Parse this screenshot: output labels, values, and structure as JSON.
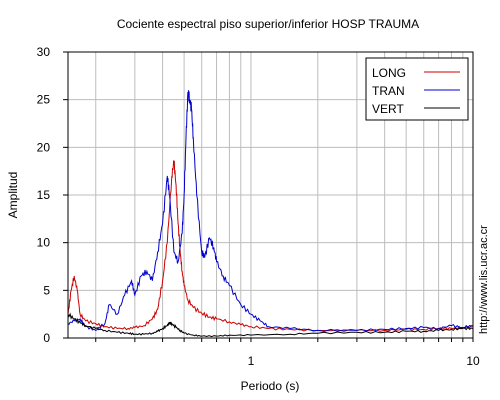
{
  "chart_data": {
    "type": "line",
    "title": "Cociente espectral piso superior/inferior  HOSP TRAUMA",
    "xlabel": "Periodo (s)",
    "ylabel": "Amplitud",
    "x_scale": "log",
    "xlim": [
      0.15,
      10
    ],
    "ylim": [
      0,
      30
    ],
    "y_ticks": [
      0,
      5,
      10,
      15,
      20,
      25,
      30
    ],
    "x_tick_labels": [
      {
        "value": 1,
        "label": "1"
      },
      {
        "value": 10,
        "label": "10"
      }
    ],
    "grid": true,
    "legend_position": "top-right",
    "side_text": "http://www.lis.ucr.ac.cr",
    "series": [
      {
        "name": "LONG",
        "color": "#cc0000",
        "x": [
          0.15,
          0.155,
          0.16,
          0.165,
          0.17,
          0.18,
          0.2,
          0.22,
          0.25,
          0.28,
          0.3,
          0.33,
          0.36,
          0.38,
          0.4,
          0.42,
          0.44,
          0.45,
          0.46,
          0.47,
          0.48,
          0.49,
          0.5,
          0.52,
          0.55,
          0.6,
          0.65,
          0.7,
          0.8,
          0.9,
          1.0,
          1.2,
          1.5,
          2.0,
          3.0,
          4.0,
          5.0,
          6.0,
          7.0,
          8.0,
          9.0,
          10.0
        ],
        "y": [
          2.5,
          5.0,
          6.5,
          5.0,
          2.5,
          1.8,
          1.5,
          1.2,
          1.0,
          1.0,
          1.1,
          1.3,
          2.0,
          3.0,
          6.0,
          10.0,
          17.0,
          18.5,
          16.0,
          12.0,
          9.0,
          7.0,
          5.5,
          4.0,
          3.2,
          2.6,
          2.2,
          2.0,
          1.7,
          1.4,
          1.2,
          1.0,
          0.9,
          0.8,
          0.8,
          0.8,
          0.9,
          0.9,
          1.0,
          1.0,
          1.1,
          1.2
        ]
      },
      {
        "name": "TRAN",
        "color": "#0000cc",
        "x": [
          0.15,
          0.16,
          0.17,
          0.18,
          0.2,
          0.22,
          0.23,
          0.25,
          0.27,
          0.29,
          0.3,
          0.32,
          0.34,
          0.36,
          0.38,
          0.4,
          0.42,
          0.43,
          0.45,
          0.47,
          0.49,
          0.5,
          0.51,
          0.52,
          0.53,
          0.54,
          0.55,
          0.57,
          0.6,
          0.62,
          0.65,
          0.68,
          0.7,
          0.75,
          0.8,
          0.9,
          1.0,
          1.1,
          1.2,
          1.5,
          2.0,
          3.0,
          4.0,
          5.0,
          6.0,
          7.0,
          8.0,
          9.0,
          10.0
        ],
        "y": [
          1.5,
          1.8,
          2.0,
          1.2,
          0.8,
          1.5,
          3.5,
          2.5,
          4.5,
          6.0,
          4.5,
          6.5,
          7.0,
          6.0,
          9.0,
          12.0,
          17.0,
          15.0,
          9.0,
          8.0,
          11.0,
          15.0,
          21.0,
          25.8,
          25.0,
          24.0,
          21.0,
          15.0,
          9.0,
          8.5,
          10.5,
          9.5,
          8.0,
          6.5,
          5.5,
          3.5,
          2.5,
          1.8,
          1.2,
          1.0,
          0.8,
          0.8,
          0.9,
          1.0,
          1.1,
          1.0,
          1.3,
          1.1,
          1.3
        ]
      },
      {
        "name": "VERT",
        "color": "#000000",
        "x": [
          0.15,
          0.16,
          0.17,
          0.18,
          0.2,
          0.22,
          0.25,
          0.28,
          0.3,
          0.33,
          0.36,
          0.38,
          0.4,
          0.42,
          0.43,
          0.44,
          0.46,
          0.48,
          0.5,
          0.55,
          0.6,
          0.7,
          0.8,
          1.0,
          1.5,
          2.0,
          3.0,
          4.0,
          5.0,
          6.0,
          7.0,
          8.0,
          9.0,
          10.0
        ],
        "y": [
          2.5,
          2.0,
          1.6,
          1.3,
          1.0,
          0.8,
          0.6,
          0.5,
          0.4,
          0.4,
          0.5,
          0.7,
          1.0,
          1.3,
          1.6,
          1.5,
          1.1,
          0.8,
          0.5,
          0.3,
          0.2,
          0.2,
          0.3,
          0.3,
          0.4,
          0.5,
          0.6,
          0.6,
          0.7,
          0.7,
          0.8,
          0.9,
          1.0,
          1.0
        ]
      }
    ]
  }
}
